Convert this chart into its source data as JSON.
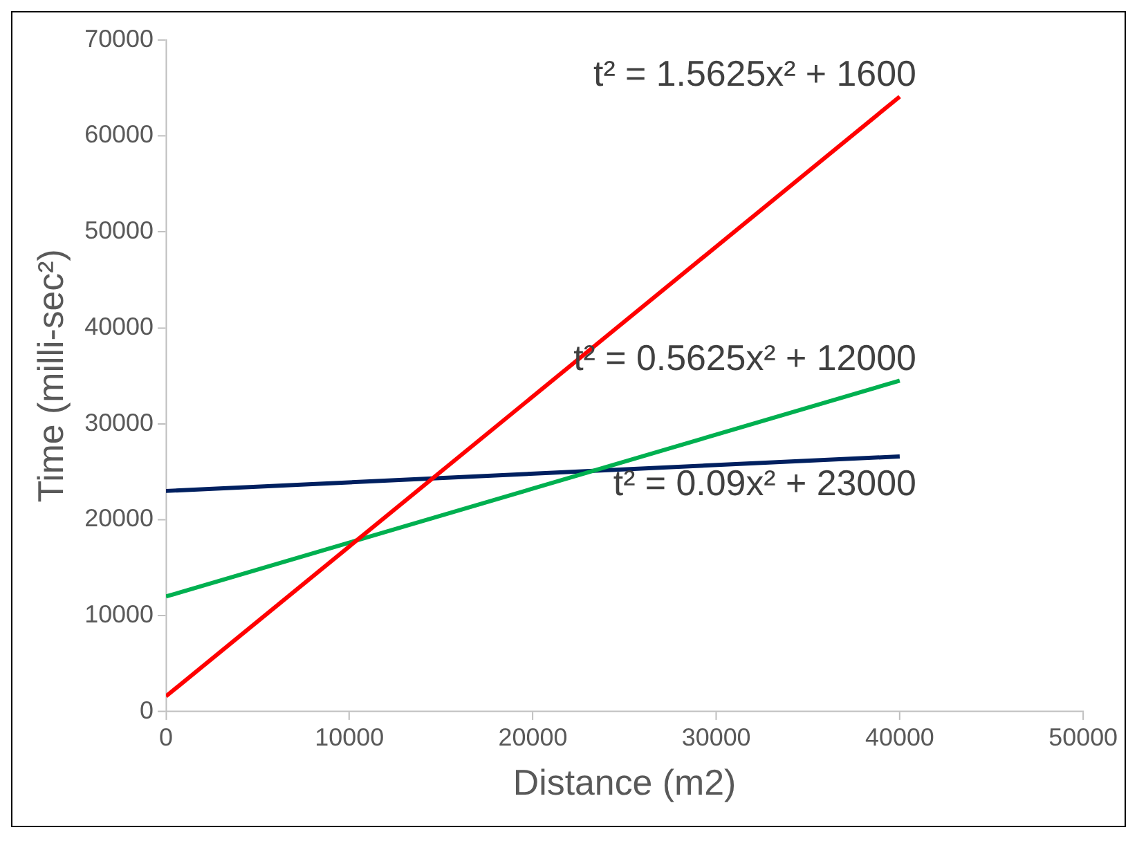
{
  "chart_data": {
    "type": "line",
    "xlabel": "Distance (m2)",
    "ylabel": "Time (milli-sec²)",
    "x": [
      0,
      40000
    ],
    "series": [
      {
        "color": "#ff0000",
        "values": [
          1600,
          64100
        ]
      },
      {
        "color": "#00b050",
        "values": [
          12000,
          34500
        ]
      },
      {
        "color": "#002060",
        "values": [
          23000,
          26600
        ]
      }
    ],
    "xlim": [
      0,
      50000
    ],
    "xticks": [
      0,
      10000,
      20000,
      30000,
      40000,
      50000
    ],
    "ylim": [
      0,
      70000
    ],
    "yticks": [
      0,
      10000,
      20000,
      30000,
      40000,
      50000,
      60000,
      70000
    ],
    "grid": false,
    "legend": false,
    "marker": "none",
    "line_style": "solid",
    "annotations": [
      "t² = 1.5625x² + 1600",
      "t² = 0.5625x² + 12000",
      "t² = 0.09x² + 23000"
    ]
  }
}
